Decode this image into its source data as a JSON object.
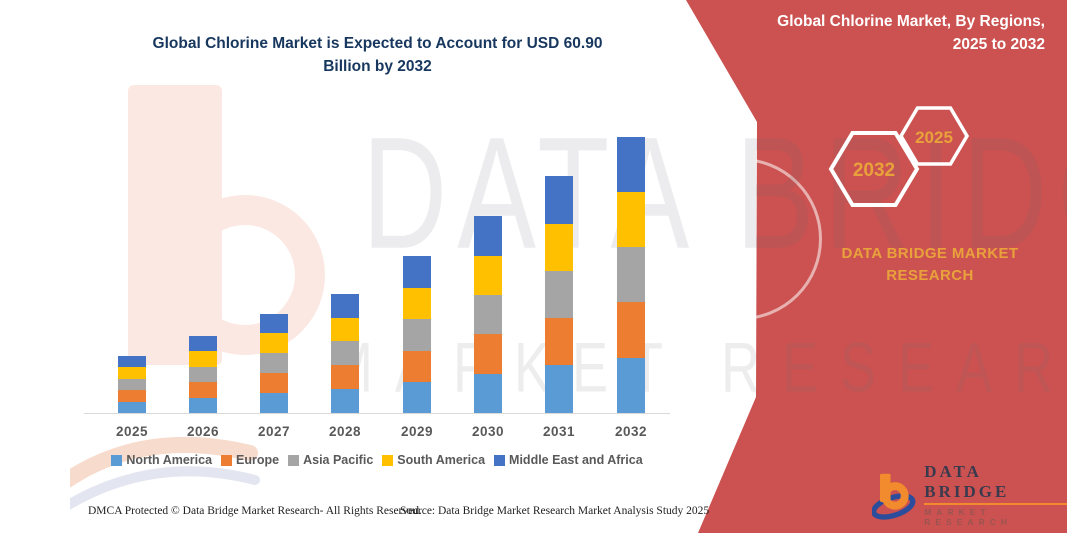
{
  "header": {
    "title_line1": "Global Chlorine Market is Expected to Account for USD 60.90",
    "title_line2": "Billion by 2032"
  },
  "panel": {
    "heading_line1": "Global Chlorine Market, By Regions,",
    "heading_line2": "2025 to 2032",
    "background_color": "#CB5250",
    "accent_text_color": "#E9A13B",
    "hexagons": [
      {
        "label": "2032"
      },
      {
        "label": "2025"
      }
    ],
    "brand_line1": "DATA BRIDGE MARKET",
    "brand_line2": "RESEARCH"
  },
  "watermark": {
    "line1": "DATA BRIDGE",
    "line2": "MARKET RESEARCH"
  },
  "logo": {
    "wordmark": "DATA BRIDGE",
    "subtext": "MARKET RESEARCH"
  },
  "footer": {
    "left": "DMCA Protected © Data Bridge Market Research-  All Rights Reserved.",
    "source": "Source: Data Bridge Market Research  Market Analysis Study 2025"
  },
  "chart_data": {
    "type": "bar",
    "stacked": true,
    "title": "Global Chlorine Market is Expected to Account for USD 60.90 Billion by 2032",
    "unit": "USD Billion",
    "categories": [
      "2025",
      "2026",
      "2027",
      "2028",
      "2029",
      "2030",
      "2031",
      "2032"
    ],
    "totals": [
      12.7,
      17.1,
      21.9,
      26.3,
      34.6,
      43.4,
      52.3,
      60.9
    ],
    "series": [
      {
        "name": "North America",
        "color": "#5B9BD5",
        "values": [
          2.5,
          3.4,
          4.4,
          5.3,
          6.9,
          8.7,
          10.5,
          12.2
        ]
      },
      {
        "name": "Europe",
        "color": "#ED7D31",
        "values": [
          2.6,
          3.4,
          4.4,
          5.3,
          6.9,
          8.7,
          10.4,
          12.2
        ]
      },
      {
        "name": "Asia Pacific",
        "color": "#A5A5A5",
        "values": [
          2.5,
          3.4,
          4.4,
          5.3,
          6.9,
          8.7,
          10.4,
          12.2
        ]
      },
      {
        "name": "South America",
        "color": "#FFC000",
        "values": [
          2.6,
          3.5,
          4.4,
          5.2,
          6.9,
          8.6,
          10.5,
          12.1
        ]
      },
      {
        "name": "Middle East and Africa",
        "color": "#4472C4",
        "values": [
          2.5,
          3.4,
          4.3,
          5.2,
          7.0,
          8.7,
          10.5,
          12.2
        ]
      }
    ],
    "xlabel": "",
    "ylabel": "",
    "y_axis_labels_visible": false,
    "gridlines": false,
    "legend_position": "bottom"
  }
}
